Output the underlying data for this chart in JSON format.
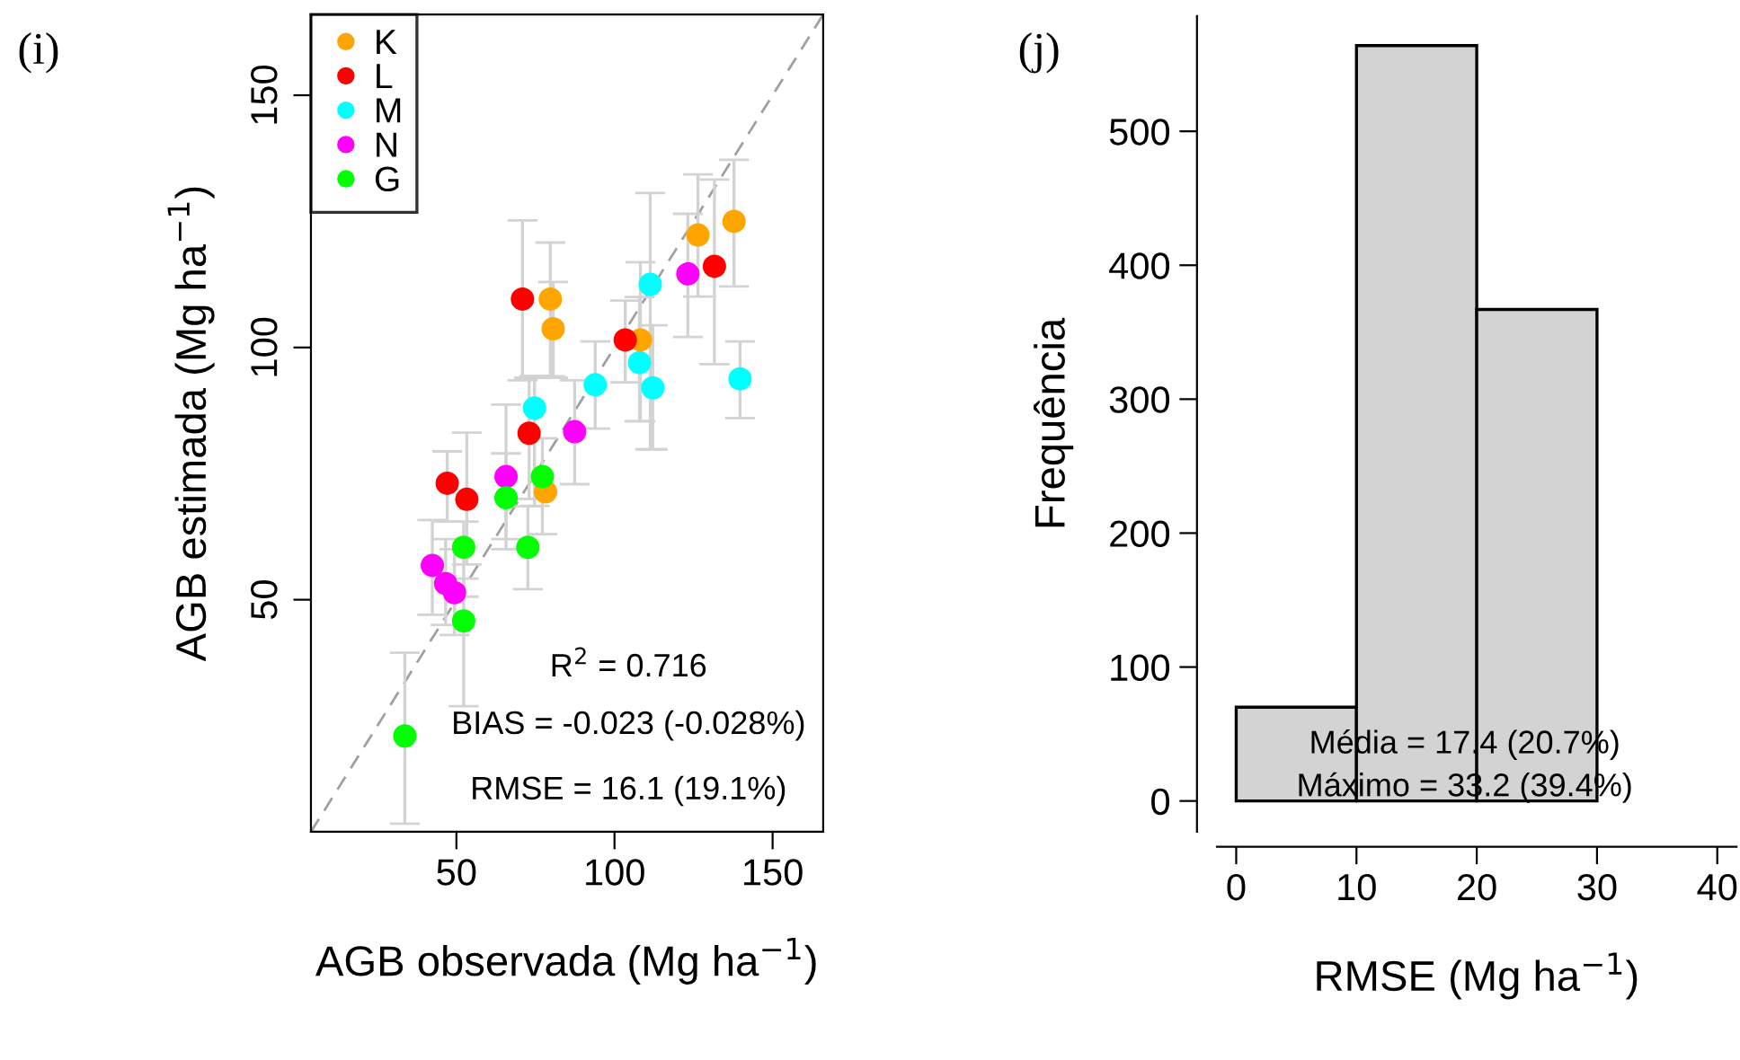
{
  "chart_data": [
    {
      "type": "scatter",
      "title": "(i)",
      "xlabel": "AGB observada (Mg ha$^{−1}$)",
      "ylabel": "AGB estimada (Mg ha$^{−1}$)",
      "xlim": [
        4,
        166
      ],
      "ylim": [
        4,
        166
      ],
      "xticks": [
        50,
        100,
        150
      ],
      "yticks": [
        50,
        100,
        150
      ],
      "grid": false,
      "legend": "top left",
      "marker": "circle",
      "series": [
        {
          "name": "K",
          "color": "#ffa500",
          "x": [
            79.7,
            80.6,
            108.2,
            126.4,
            137.8,
            78.2
          ],
          "values": [
            109.6,
            103.7,
            101.5,
            122.3,
            125,
            71.4
          ],
          "errors": [
            [
              94.3,
              120.8
            ],
            [
              94,
              113
            ],
            [
              85.4,
              116.9
            ],
            [
              110.1,
              134.3
            ],
            [
              112.1,
              137.2
            ],
            null
          ]
        },
        {
          "name": "L",
          "color": "#ff0000",
          "x": [
            70.9,
            73,
            103.4,
            131.6,
            47.1,
            53.3
          ],
          "values": [
            109.6,
            83,
            101.5,
            116.1,
            73.1,
            69.9
          ],
          "errors": [
            [
              93.5,
              125.2
            ],
            [
              70,
              94
            ],
            [
              93.1,
              109.3
            ],
            [
              96.7,
              133.3
            ],
            [
              65.5,
              79.4
            ],
            [
              57,
              83.1
            ]
          ]
        },
        {
          "name": "M",
          "color": "#00ffff",
          "x": [
            74.7,
            93.9,
            107.9,
            111.3,
            112.1,
            139.7
          ],
          "values": [
            88,
            92.6,
            97,
            112.5,
            92,
            93.8
          ],
          "errors": [
            [
              68.6,
              94.4
            ],
            [
              83.9,
              101.2
            ],
            [
              85.4,
              110
            ],
            [
              79.8,
              130.6
            ],
            [
              79.8,
              104.4
            ],
            [
              86,
              101.2
            ]
          ]
        },
        {
          "name": "N",
          "color": "#ff00ff",
          "x": [
            87.4,
            123.2,
            65.7,
            42.4,
            46.6,
            49.4
          ],
          "values": [
            83.3,
            114.6,
            74.4,
            56.8,
            53.2,
            51.4
          ],
          "errors": [
            [
              72.9,
              93.5
            ],
            [
              102.1,
              126.5
            ],
            [
              60,
              88.7
            ],
            [
              47,
              65.8
            ],
            [
              45,
              62
            ],
            [
              43,
              60
            ]
          ]
        },
        {
          "name": "G",
          "color": "#00ff00",
          "x": [
            65.7,
            77.2,
            52.3,
            72.6,
            52.3,
            33.7
          ],
          "values": [
            70.2,
            74.4,
            60.4,
            60.4,
            45.8,
            23
          ],
          "errors": [
            [
              62,
              79
            ],
            [
              63,
              82
            ],
            [
              50.6,
              65.5
            ],
            [
              52.1,
              68.5
            ],
            [
              28.9,
              54.2
            ],
            [
              5.6,
              39.5
            ]
          ]
        },
        {
          "type": "line",
          "color": "#a0a0a0",
          "line_style": "dashed",
          "marker": "none",
          "x": [
            4,
            166
          ],
          "values": [
            4,
            166
          ]
        }
      ],
      "annotations": [
        "R$^{2}$ = 0.716",
        "BIAS = -0.023 (-0.028%)",
        "RMSE = 16.1 (19.1%)"
      ]
    },
    {
      "type": "histogram",
      "title": "(j)",
      "xlabel": "RMSE (Mg ha$^{−1}$)",
      "ylabel": "Frequência",
      "bins": [
        0,
        10,
        20,
        30,
        40
      ],
      "values": [
        70,
        564,
        367,
        0
      ],
      "color": "#d3d3d3",
      "xlim": [
        -1.6,
        41.6
      ],
      "ylim": [
        -23,
        586
      ],
      "xticks": [
        0,
        10,
        20,
        30,
        40
      ],
      "yticks": [
        0,
        100,
        200,
        300,
        400,
        500
      ],
      "grid": false,
      "annotations": [
        "Média = 17.4 (20.7%)",
        "Máximo = 33.2 (39.4%)"
      ]
    }
  ]
}
